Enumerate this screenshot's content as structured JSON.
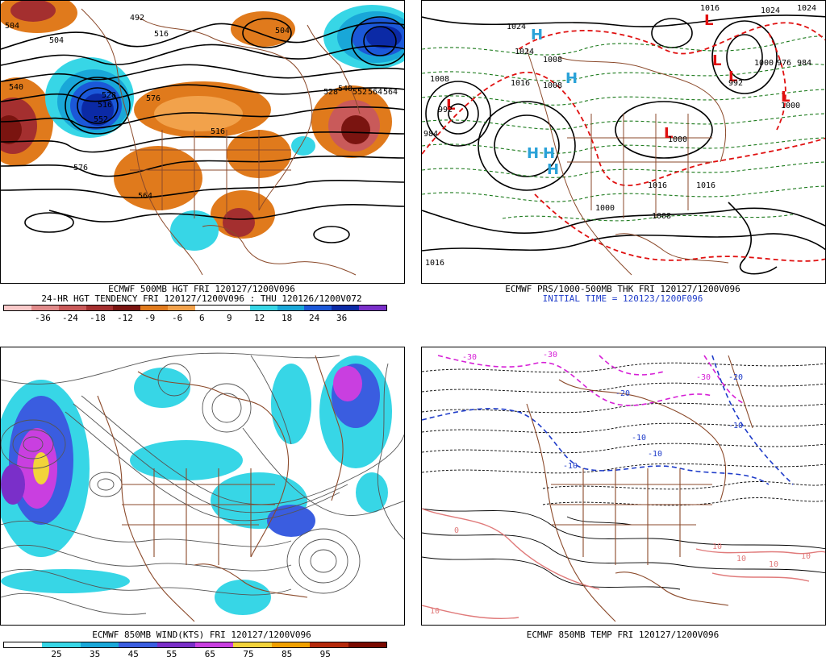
{
  "panels": {
    "p500": {
      "caption1": "ECMWF 500MB HGT FRI 120127/1200V096",
      "caption2": "24-HR HGT TENDENCY FRI 120127/1200V096 : THU 120126/1200V072",
      "colorbar": {
        "colors": [
          "#f8c9c9",
          "#e08a8a",
          "#c95a5a",
          "#a42f2f",
          "#7a1410",
          "#e07a1c",
          "#f2a24b",
          "#ffffff",
          "#ffffff",
          "#37d6e6",
          "#19a7d8",
          "#1b58d8",
          "#0b2aa6",
          "#7a2fc9"
        ],
        "labels": [
          "-36",
          "-24",
          "-18",
          "-12",
          "-9",
          "-6",
          "6",
          "9",
          "12",
          "18",
          "24",
          "36"
        ]
      },
      "contour_labels": [
        "492",
        "504",
        "516",
        "528",
        "540",
        "552",
        "564",
        "576",
        "516",
        "504",
        "516",
        "528",
        "540",
        "552",
        "564",
        "564",
        "576",
        "504"
      ]
    },
    "pthk": {
      "caption1": "ECMWF PRS/1000-500MB THK FRI 120127/1200V096",
      "caption2": "INITIAL TIME = 120123/1200F096",
      "contour_labels": [
        "1024",
        "1024",
        "1008",
        "1008",
        "1016",
        "1008",
        "992",
        "984",
        "1000",
        "1000",
        "1016",
        "1008",
        "1016",
        "1016",
        "1016",
        "1024",
        "1024",
        "1000",
        "1000",
        "992",
        "976",
        "984"
      ],
      "highs": [
        "H",
        "H",
        "H",
        "H",
        "H"
      ],
      "lows": [
        "L",
        "L",
        "L",
        "L",
        "L",
        "L"
      ]
    },
    "pwind": {
      "caption1": "ECMWF 850MB WIND(KTS) FRI 120127/1200V096",
      "colorbar": {
        "colors": [
          "#ffffff",
          "#37d6e6",
          "#19a7d8",
          "#3a5de0",
          "#7a2fc9",
          "#c93fe0",
          "#f2d33a",
          "#f0a000",
          "#b5290b",
          "#7a0a00"
        ],
        "labels": [
          "25",
          "35",
          "45",
          "55",
          "65",
          "75",
          "85",
          "95"
        ]
      }
    },
    "ptemp": {
      "caption1": "ECMWF 850MB TEMP FRI 120127/1200V096",
      "isotherm_labels": [
        "-30",
        "-30",
        "-20",
        "-20",
        "-10",
        "-10",
        "-10",
        "0",
        "10",
        "10",
        "10",
        "10",
        "10",
        "-10",
        "-30"
      ]
    }
  }
}
